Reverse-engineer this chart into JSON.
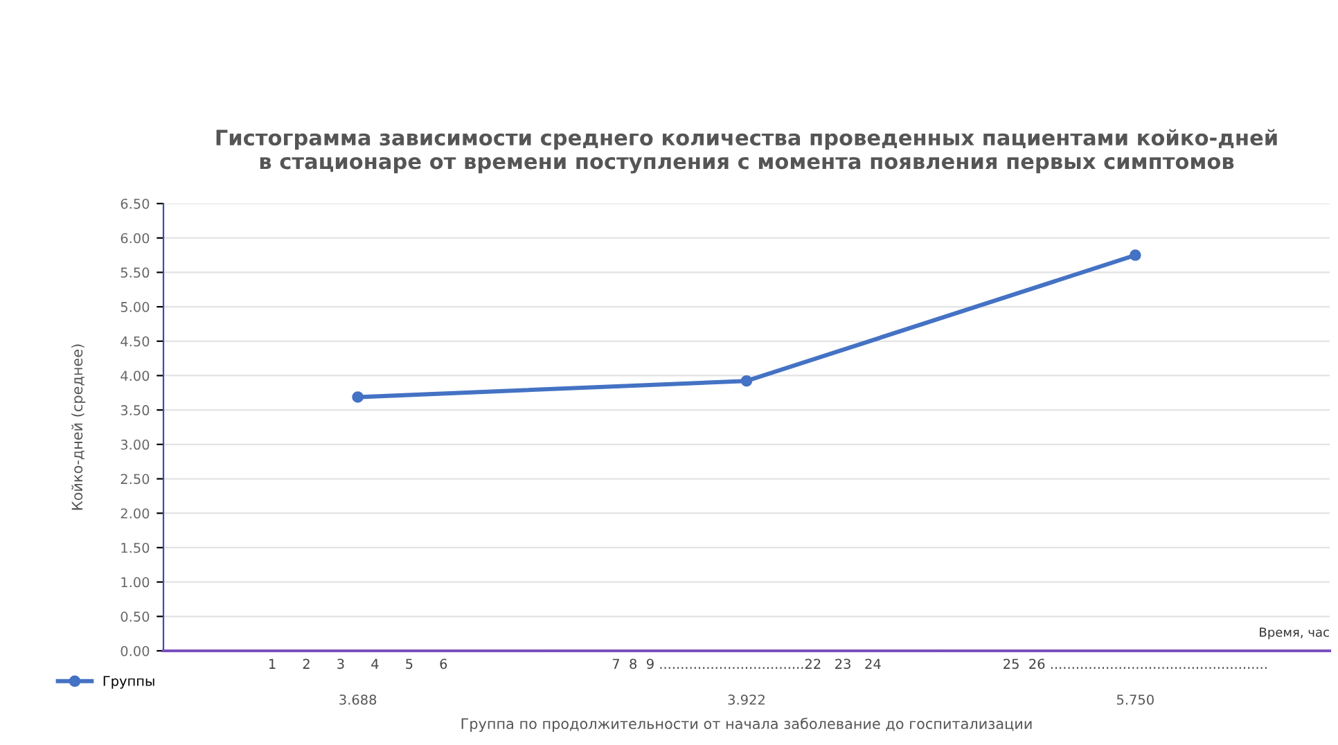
{
  "chart_data": {
    "type": "line",
    "title": "Гистограмма зависимости среднего количества проведенных пациентами койко-дней\nв стационаре от времени поступления с момента появления первых симптомов",
    "xlabel": "Группа по продолжительности от начала заболевание до госпитализации",
    "ylabel": "Койко-дней (среднее)",
    "categories": [
      "1      2      3      4      5      6",
      "7  8  9 ..................................22   23   24",
      "25  26 ..................................................."
    ],
    "series": [
      {
        "name": "Группы",
        "color": "#4472c4",
        "values": [
          3.688,
          3.922,
          5.75
        ]
      }
    ],
    "value_labels": [
      "3.688",
      "3.922",
      "5.750"
    ],
    "annotations": [
      "Время, час"
    ],
    "ylim": [
      0,
      6.5
    ],
    "yticks": [
      {
        "value": 0,
        "label": "0.00"
      },
      {
        "value": 0.5,
        "label": "0.50"
      },
      {
        "value": 1,
        "label": "1.00"
      },
      {
        "value": 1.5,
        "label": "1.50"
      },
      {
        "value": 2,
        "label": "2.00"
      },
      {
        "value": 2.5,
        "label": "2.50"
      },
      {
        "value": 3,
        "label": "3.00"
      },
      {
        "value": 3.5,
        "label": "3.50"
      },
      {
        "value": 4,
        "label": "4.00"
      },
      {
        "value": 4.5,
        "label": "4.50"
      },
      {
        "value": 5,
        "label": "5.00"
      },
      {
        "value": 5.5,
        "label": "5.50"
      },
      {
        "value": 6,
        "label": "6.00"
      },
      {
        "value": 6.5,
        "label": "6.50"
      }
    ],
    "grid": "y",
    "legend": "bottom left",
    "marker": "circle",
    "line_style": "solid"
  }
}
